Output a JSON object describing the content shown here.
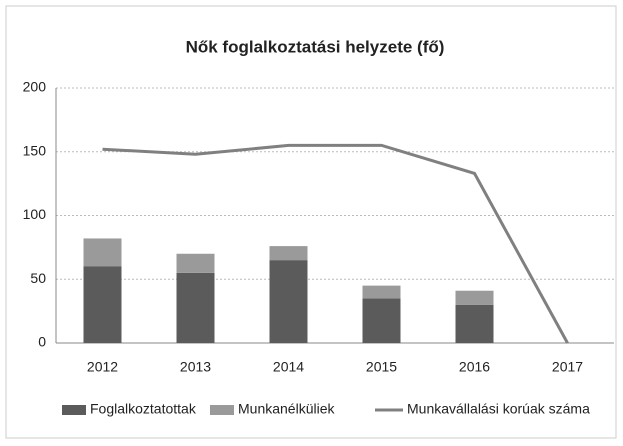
{
  "chart_data": {
    "type": "bar_line",
    "title": "Nők foglalkoztatási helyzete (fő)",
    "categories": [
      "2012",
      "2013",
      "2014",
      "2015",
      "2016",
      "2017"
    ],
    "series": [
      {
        "name": "Foglalkoztatottak",
        "type": "bar",
        "color": "#5b5b5b",
        "values": [
          60,
          55,
          65,
          35,
          30,
          0
        ]
      },
      {
        "name": "Munkanélküliek",
        "type": "bar",
        "color": "#9a9a9a",
        "values": [
          22,
          15,
          11,
          10,
          11,
          0
        ]
      },
      {
        "name": "Munkavállalási korúak száma",
        "type": "line",
        "color": "#808080",
        "values": [
          152,
          148,
          155,
          155,
          133,
          0
        ]
      }
    ],
    "stacked": true,
    "ylim": [
      0,
      200
    ],
    "yticks": [
      0,
      50,
      100,
      150,
      200
    ],
    "grid": true,
    "legend": "bottom"
  }
}
